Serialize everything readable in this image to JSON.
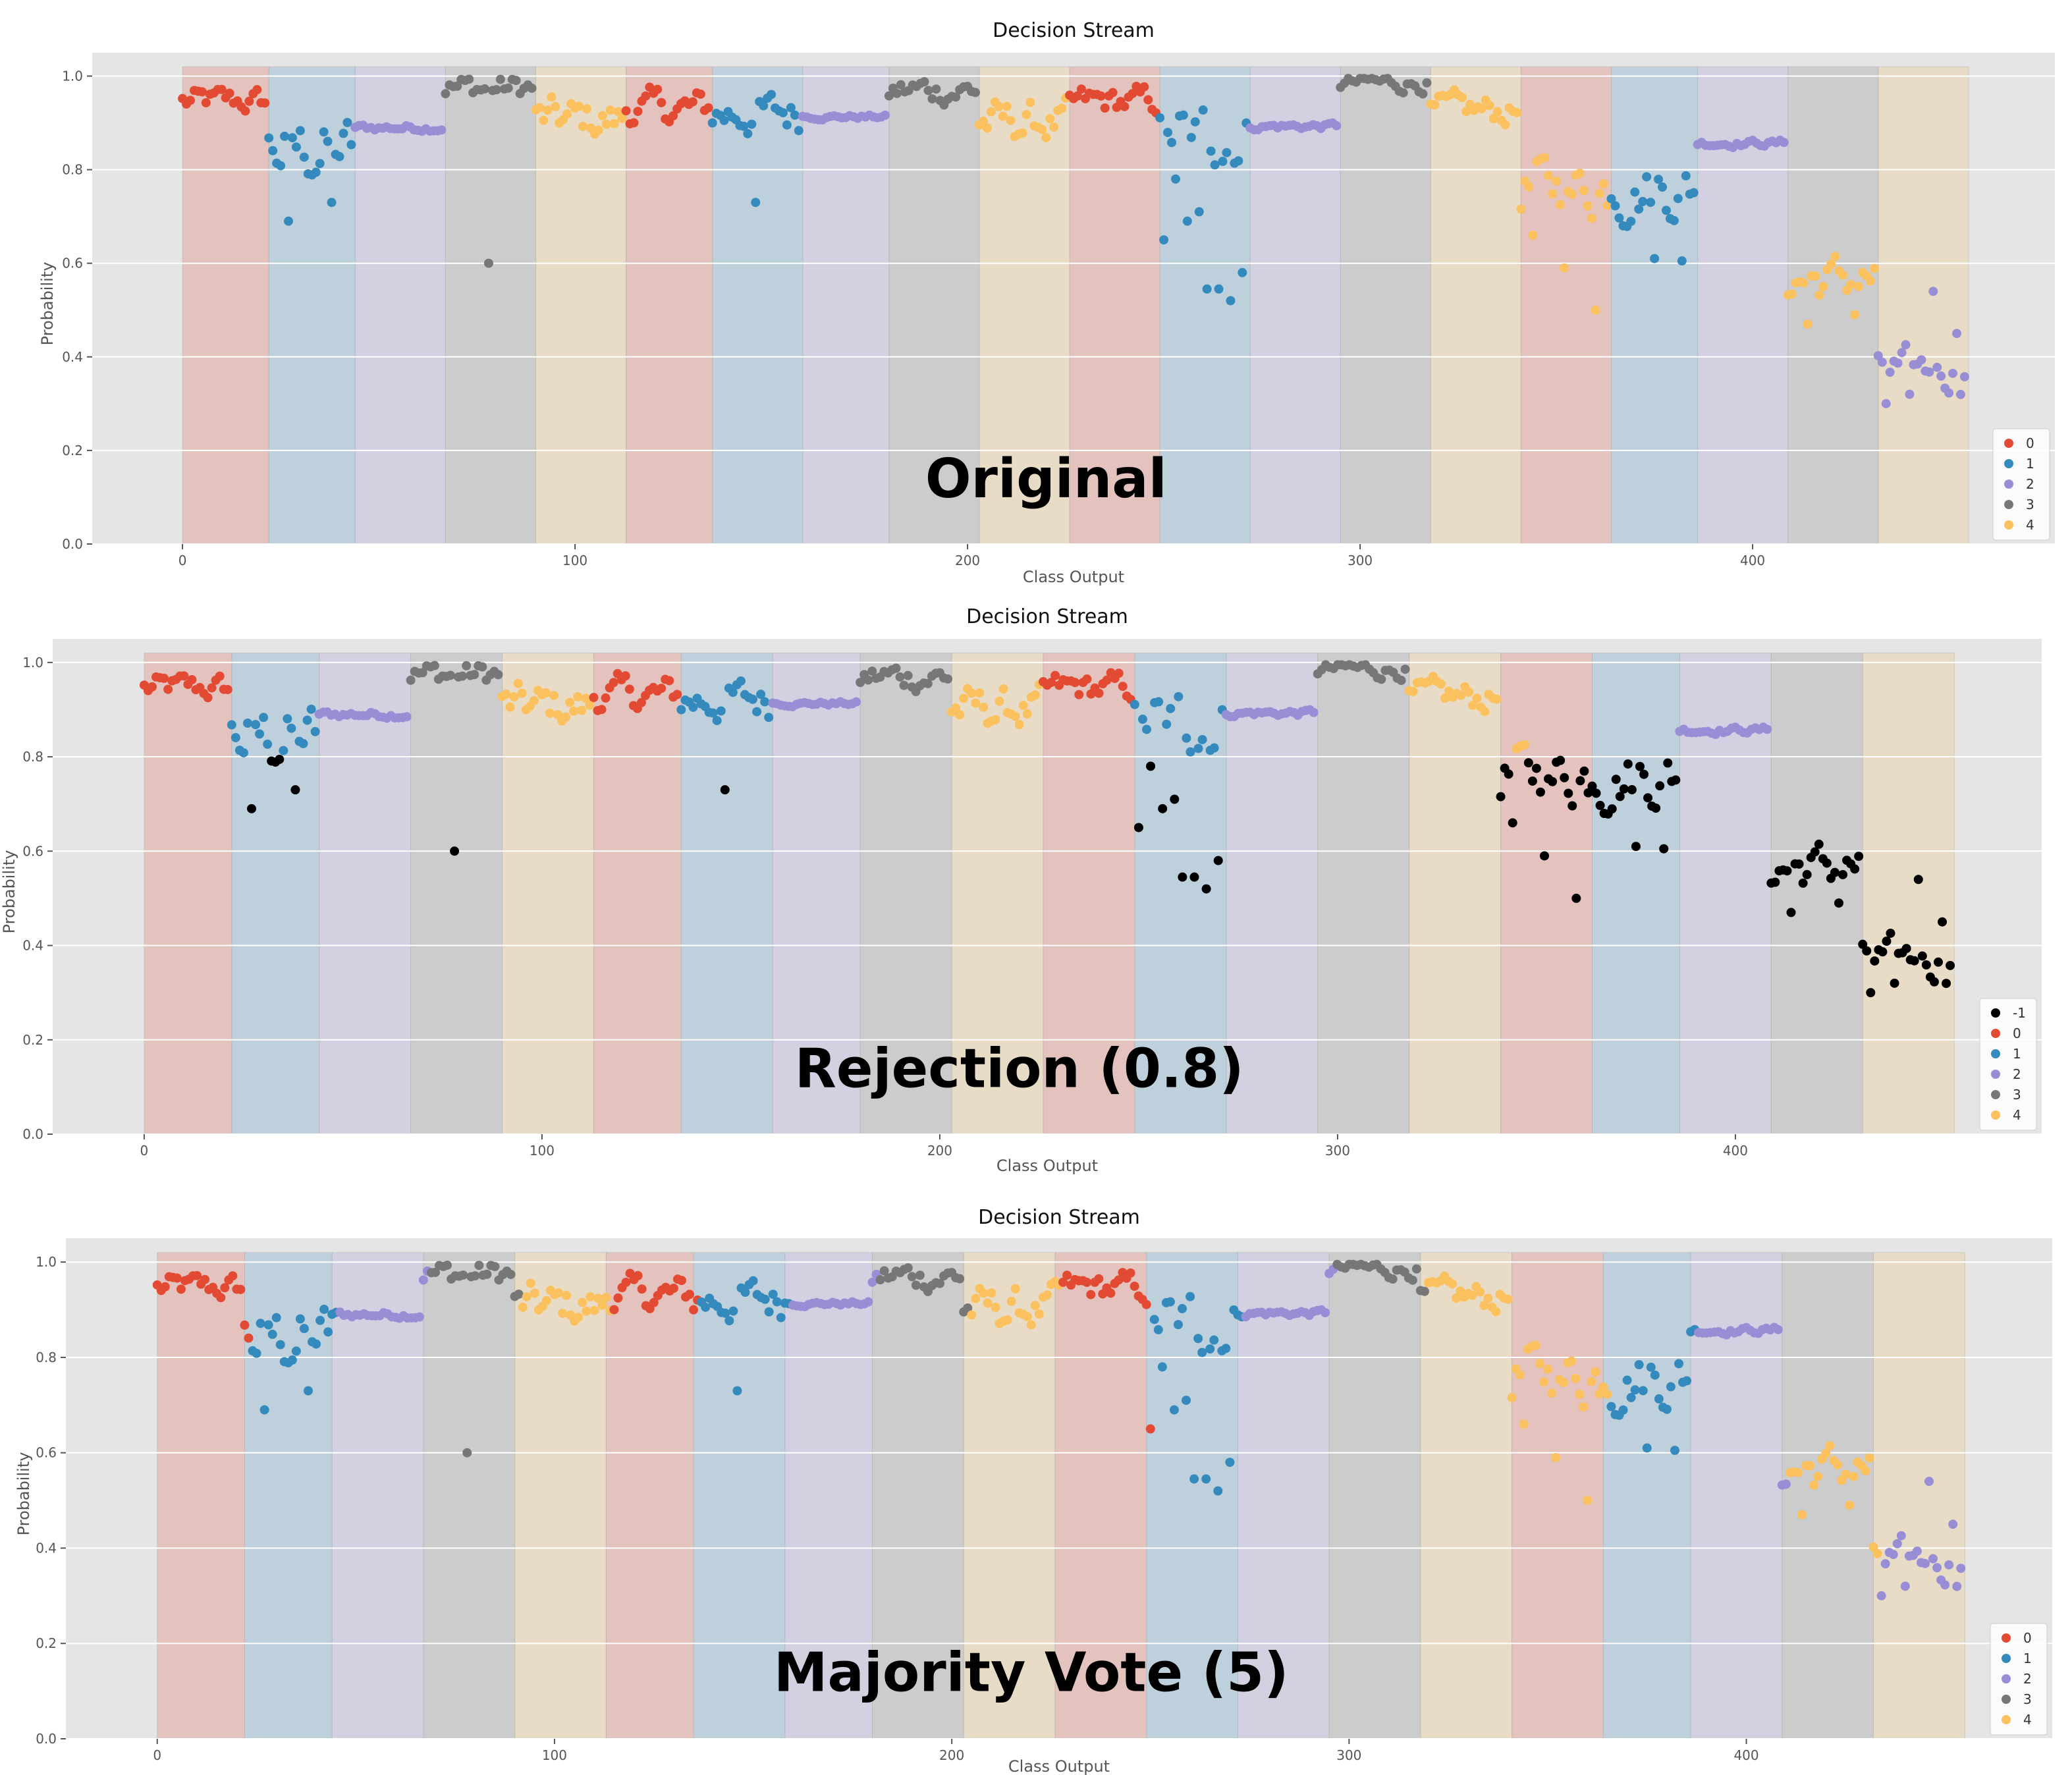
{
  "chart_data": [
    {
      "type": "scatter",
      "title": "Decision Stream",
      "overlay_text": "Original",
      "xlabel": "Class Output",
      "ylabel": "Probability",
      "xlim": [
        -23,
        477
      ],
      "ylim": [
        0,
        1.05
      ],
      "xticks": [
        "0",
        "100",
        "200",
        "300",
        "400"
      ],
      "yticks": [
        "0.0",
        "0.2",
        "0.4",
        "0.6",
        "0.8",
        "1.0"
      ],
      "legend": [
        "0",
        "1",
        "2",
        "3",
        "4"
      ],
      "band_class_order": [
        0,
        1,
        2,
        3,
        4,
        0,
        1,
        2,
        3,
        4,
        0,
        1,
        2,
        3,
        4,
        0,
        1,
        2,
        3,
        4
      ],
      "band_boundaries": [
        0,
        22,
        44,
        67,
        90,
        113,
        135,
        158,
        180,
        203,
        226,
        249,
        272,
        295,
        318,
        341,
        364,
        386,
        409,
        432,
        455
      ],
      "grid": true
    },
    {
      "type": "scatter",
      "title": "Decision Stream",
      "overlay_text": "Rejection (0.8)",
      "xlabel": "Class Output",
      "ylabel": "Probability",
      "xlim": [
        -23,
        477
      ],
      "ylim": [
        0,
        1.05
      ],
      "xticks": [
        "0",
        "100",
        "200",
        "300",
        "400"
      ],
      "yticks": [
        "0.0",
        "0.2",
        "0.4",
        "0.6",
        "0.8",
        "1.0"
      ],
      "legend": [
        "-1",
        "0",
        "1",
        "2",
        "3",
        "4"
      ],
      "rejection_threshold": 0.8,
      "band_class_order": [
        0,
        1,
        2,
        3,
        4,
        0,
        1,
        2,
        3,
        4,
        0,
        1,
        2,
        3,
        4,
        0,
        1,
        2,
        3,
        4
      ],
      "band_boundaries": [
        0,
        22,
        44,
        67,
        90,
        113,
        135,
        158,
        180,
        203,
        226,
        249,
        272,
        295,
        318,
        341,
        364,
        386,
        409,
        432,
        455
      ],
      "grid": true
    },
    {
      "type": "scatter",
      "title": "Decision Stream",
      "overlay_text": "Majority Vote (5)",
      "xlabel": "Class Output",
      "ylabel": "Probability",
      "xlim": [
        -23,
        477
      ],
      "ylim": [
        0,
        1.05
      ],
      "xticks": [
        "0",
        "100",
        "200",
        "300",
        "400"
      ],
      "yticks": [
        "0.0",
        "0.2",
        "0.4",
        "0.6",
        "0.8",
        "1.0"
      ],
      "legend": [
        "0",
        "1",
        "2",
        "3",
        "4"
      ],
      "majority_window": 5,
      "band_class_order": [
        0,
        1,
        2,
        3,
        4,
        0,
        1,
        2,
        3,
        4,
        0,
        1,
        2,
        3,
        4,
        0,
        1,
        2,
        3,
        4
      ],
      "band_boundaries": [
        0,
        22,
        44,
        67,
        90,
        113,
        135,
        158,
        180,
        203,
        226,
        249,
        272,
        295,
        318,
        341,
        364,
        386,
        409,
        432,
        455
      ],
      "grid": true
    }
  ],
  "colors": {
    "class_-1": "#000000",
    "class_0": "#e24a33",
    "class_1": "#348abd",
    "class_2": "#988ed5",
    "class_3": "#777777",
    "class_4": "#fbc15e",
    "plot_bg": "#e5e5e5",
    "grid": "#ffffff"
  },
  "segments": [
    {
      "cls": 0,
      "mean": 0.945,
      "spread": 0.045,
      "low": []
    },
    {
      "cls": 1,
      "mean": 0.84,
      "spread": 0.12,
      "low": [
        0.69,
        0.73
      ]
    },
    {
      "cls": 2,
      "mean": 0.89,
      "spread": 0.012,
      "low": []
    },
    {
      "cls": 3,
      "mean": 0.975,
      "spread": 0.045,
      "low": [
        0.6
      ]
    },
    {
      "cls": 4,
      "mean": 0.905,
      "spread": 0.075,
      "low": []
    },
    {
      "cls": 0,
      "mean": 0.93,
      "spread": 0.06,
      "low": []
    },
    {
      "cls": 1,
      "mean": 0.92,
      "spread": 0.07,
      "low": [
        0.73
      ]
    },
    {
      "cls": 2,
      "mean": 0.913,
      "spread": 0.008,
      "low": []
    },
    {
      "cls": 3,
      "mean": 0.97,
      "spread": 0.05,
      "low": []
    },
    {
      "cls": 4,
      "mean": 0.9,
      "spread": 0.07,
      "low": []
    },
    {
      "cls": 0,
      "mean": 0.945,
      "spread": 0.05,
      "low": []
    },
    {
      "cls": 1,
      "mean": 0.87,
      "spread": 0.1,
      "low": [
        0.65,
        0.78,
        0.69,
        0.71,
        0.545,
        0.545,
        0.52,
        0.58
      ]
    },
    {
      "cls": 2,
      "mean": 0.893,
      "spread": 0.012,
      "low": []
    },
    {
      "cls": 3,
      "mean": 0.985,
      "spread": 0.03,
      "low": []
    },
    {
      "cls": 4,
      "mean": 0.925,
      "spread": 0.05,
      "low": []
    },
    {
      "cls": 4,
      "mean": 0.76,
      "spread": 0.1,
      "low": [
        0.66,
        0.59,
        0.5
      ]
    },
    {
      "cls": 1,
      "mean": 0.76,
      "spread": 0.1,
      "low": [
        0.68,
        0.61,
        0.605
      ]
    },
    {
      "cls": 2,
      "mean": 0.857,
      "spread": 0.012,
      "low": []
    },
    {
      "cls": 4,
      "mean": 0.565,
      "spread": 0.08,
      "low": [
        0.47,
        0.49
      ]
    },
    {
      "cls": 2,
      "mean": 0.37,
      "spread": 0.07,
      "low": [
        0.3,
        0.32,
        0.54,
        0.45
      ]
    }
  ]
}
